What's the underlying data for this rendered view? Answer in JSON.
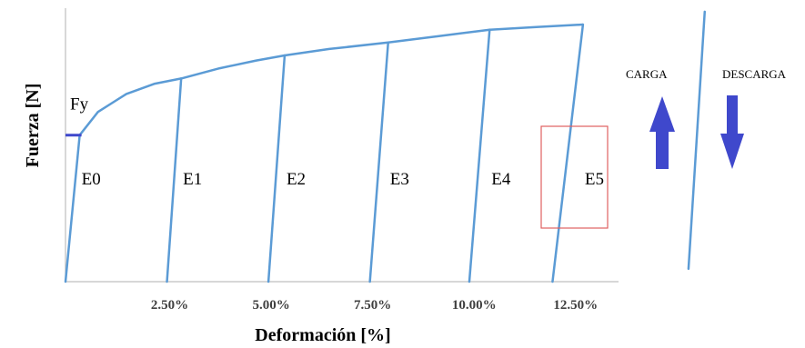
{
  "chart_data": {
    "type": "line",
    "xlabel": "Deformación [%]",
    "ylabel": "Fuerza [N]",
    "x_ticks": [
      "2.50%",
      "5.00%",
      "7.50%",
      "10.00%",
      "12.50%"
    ],
    "x_tick_values": [
      2.5,
      5.0,
      7.5,
      10.0,
      12.5
    ],
    "xlim": [
      0,
      15.8
    ],
    "ylim": [
      0,
      1.0
    ],
    "grid": false,
    "color": "#5b9bd5",
    "yield_label": "Fy",
    "yield_level": 0.57,
    "yield_marker_color": "#3f48cc",
    "segments": [
      {
        "label": "E0",
        "unload_from": [
          0.0,
          0.0
        ],
        "to": [
          0.35,
          0.57
        ]
      },
      {
        "label": "E1",
        "unload_from": [
          2.5,
          0.0
        ],
        "to": [
          2.85,
          0.79
        ]
      },
      {
        "label": "E2",
        "unload_from": [
          5.0,
          0.0
        ],
        "to": [
          5.4,
          0.88
        ]
      },
      {
        "label": "E3",
        "unload_from": [
          7.5,
          0.0
        ],
        "to": [
          7.95,
          0.93
        ]
      },
      {
        "label": "E4",
        "unload_from": [
          9.95,
          0.0
        ],
        "to": [
          10.45,
          0.98
        ]
      },
      {
        "label": "E5",
        "unload_from": [
          12.0,
          0.0
        ],
        "to": [
          12.75,
          1.0
        ]
      }
    ],
    "envelope": [
      [
        0.35,
        0.57
      ],
      [
        0.8,
        0.66
      ],
      [
        1.5,
        0.73
      ],
      [
        2.2,
        0.77
      ],
      [
        2.85,
        0.79
      ],
      [
        3.8,
        0.83
      ],
      [
        4.7,
        0.86
      ],
      [
        5.4,
        0.88
      ],
      [
        6.5,
        0.905
      ],
      [
        7.95,
        0.93
      ],
      [
        9.2,
        0.955
      ],
      [
        10.45,
        0.98
      ],
      [
        11.6,
        0.99
      ],
      [
        12.75,
        1.0
      ]
    ],
    "detail_line": {
      "from": [
        15.35,
        0.05
      ],
      "to": [
        15.75,
        1.05
      ]
    },
    "highlight_box": {
      "label": "E5",
      "color": "#e06060"
    },
    "legend": {
      "load_label": "CARGA",
      "unload_label": "DESCARGA",
      "arrow_color": "#3f48cc"
    }
  }
}
